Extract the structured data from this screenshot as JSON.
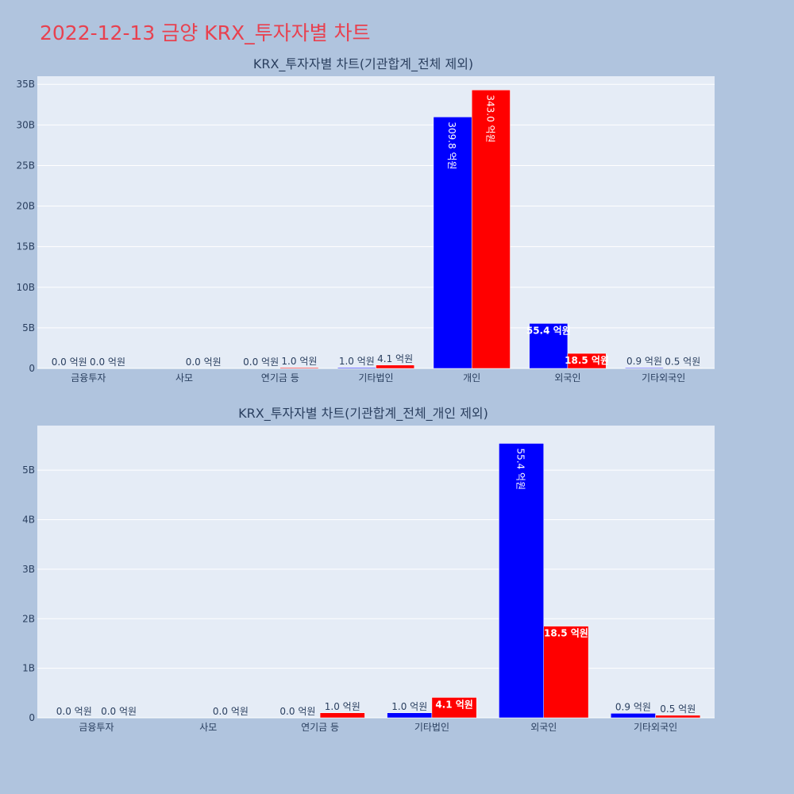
{
  "title": "2022-12-13 금양 KRX_투자자별 차트",
  "colors": {
    "background": "#b0c4de",
    "plot_bg": "#e5ecf6",
    "title": "#e8414f",
    "series_a": "#0000ff",
    "series_b": "#ff0000"
  },
  "chart_data": [
    {
      "type": "bar",
      "title": "KRX_투자자별 차트(기관합계_전체 제외)",
      "categories": [
        "금융투자",
        "사모",
        "연기금 등",
        "기타법인",
        "개인",
        "외국인",
        "기타외국인"
      ],
      "ylim": [
        0,
        36000000000
      ],
      "yticks": [
        0,
        5000000000,
        10000000000,
        15000000000,
        20000000000,
        25000000000,
        30000000000,
        35000000000
      ],
      "ytick_labels": [
        "0",
        "5B",
        "10B",
        "15B",
        "20B",
        "25B",
        "30B",
        "35B"
      ],
      "grid": true,
      "series": [
        {
          "color": "#0000ff",
          "values": [
            0,
            null,
            0,
            100000000,
            30980000000,
            5540000000,
            90000000
          ],
          "labels": [
            "0.0 억원",
            "",
            "0.0 억원",
            "1.0 억원",
            "309.8 억원",
            "55.4 억원",
            "0.9 억원"
          ]
        },
        {
          "color": "#ff0000",
          "values": [
            0,
            0,
            100000000,
            410000000,
            34300000000,
            1850000000,
            50000000
          ],
          "labels": [
            "0.0 억원",
            "0.0 억원",
            "1.0 억원",
            "4.1 억원",
            "343.0 억원",
            "18.5 억원",
            "0.5 억원"
          ]
        }
      ]
    },
    {
      "type": "bar",
      "title": "KRX_투자자별 차트(기관합계_전체_개인 제외)",
      "categories": [
        "금융투자",
        "사모",
        "연기금 등",
        "기타법인",
        "외국인",
        "기타외국인"
      ],
      "ylim": [
        0,
        5900000000
      ],
      "yticks": [
        0,
        1000000000,
        2000000000,
        3000000000,
        4000000000,
        5000000000
      ],
      "ytick_labels": [
        "0",
        "1B",
        "2B",
        "3B",
        "4B",
        "5B"
      ],
      "grid": true,
      "series": [
        {
          "color": "#0000ff",
          "values": [
            0,
            null,
            0,
            100000000,
            5540000000,
            90000000
          ],
          "labels": [
            "0.0 억원",
            "",
            "0.0 억원",
            "1.0 억원",
            "55.4 억원",
            "0.9 억원"
          ]
        },
        {
          "color": "#ff0000",
          "values": [
            0,
            0,
            100000000,
            410000000,
            1850000000,
            50000000
          ],
          "labels": [
            "0.0 억원",
            "0.0 억원",
            "1.0 억원",
            "4.1 억원",
            "18.5 억원",
            "0.5 억원"
          ]
        }
      ]
    }
  ]
}
